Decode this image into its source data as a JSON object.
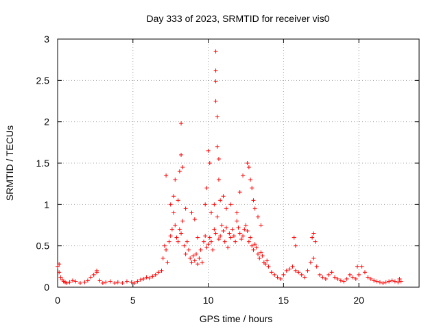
{
  "chart_data": {
    "type": "scatter",
    "title": "Day 333 of 2023, SRMTID for receiver vis0",
    "xlabel": "GPS time / hours",
    "ylabel": "SRMTID / TECUs",
    "xlim": [
      0,
      24
    ],
    "ylim": [
      0,
      3
    ],
    "x_ticks": [
      0,
      5,
      10,
      15,
      20
    ],
    "x_tick_labels": [
      "0",
      "5",
      "10",
      "15",
      "20"
    ],
    "y_ticks": [
      0,
      0.5,
      1,
      1.5,
      2,
      2.5,
      3
    ],
    "y_tick_labels": [
      "0",
      "0.5",
      "1",
      "1.5",
      "2",
      "2.5",
      "3"
    ],
    "grid": true,
    "marker": "+",
    "marker_color": "#ff0000",
    "series": [
      {
        "name": "vis0",
        "x": [
          0.0,
          0.1,
          0.2,
          0.3,
          0.4,
          0.5,
          0.6,
          0.8,
          1.0,
          1.2,
          1.5,
          1.8,
          2.0,
          2.2,
          2.4,
          2.6,
          2.8,
          3.0,
          3.2,
          3.5,
          3.8,
          4.0,
          4.3,
          4.6,
          4.9,
          5.1,
          5.3,
          5.5,
          5.7,
          5.9,
          6.1,
          6.3,
          6.5,
          6.7,
          6.9,
          7.0,
          7.1,
          7.2,
          7.3,
          7.4,
          7.5,
          7.6,
          7.7,
          7.8,
          7.9,
          8.0,
          8.1,
          8.2,
          8.3,
          8.4,
          8.5,
          8.6,
          8.7,
          8.8,
          8.9,
          9.0,
          9.1,
          9.2,
          9.3,
          9.4,
          9.5,
          9.6,
          9.7,
          9.8,
          9.9,
          10.0,
          10.1,
          10.2,
          10.3,
          10.4,
          10.5,
          10.6,
          10.7,
          10.8,
          10.9,
          11.0,
          11.1,
          11.2,
          11.3,
          11.4,
          11.5,
          11.6,
          11.7,
          11.8,
          11.9,
          12.0,
          12.1,
          12.2,
          12.3,
          12.4,
          12.5,
          12.6,
          12.7,
          12.8,
          12.9,
          13.0,
          13.1,
          13.2,
          13.3,
          13.4,
          13.5,
          13.6,
          13.7,
          13.8,
          13.9,
          14.0,
          14.2,
          14.4,
          14.6,
          14.8,
          15.0,
          15.2,
          15.4,
          15.6,
          15.8,
          16.0,
          16.2,
          16.4,
          16.6,
          16.8,
          17.0,
          17.2,
          17.4,
          17.6,
          17.8,
          18.0,
          18.2,
          18.4,
          18.6,
          18.8,
          19.0,
          19.2,
          19.4,
          19.6,
          19.8,
          20.0,
          20.2,
          20.4,
          20.6,
          20.8,
          21.0,
          21.2,
          21.4,
          21.6,
          21.8,
          22.0,
          22.2,
          22.4,
          22.6,
          22.8,
          7.2,
          7.5,
          7.7,
          7.8,
          8.0,
          8.1,
          8.2,
          8.2,
          8.3,
          8.5,
          8.9,
          9.1,
          9.3,
          9.8,
          9.9,
          10.0,
          10.1,
          10.2,
          10.4,
          10.5,
          10.5,
          10.5,
          10.5,
          10.6,
          10.6,
          10.7,
          10.7,
          10.8,
          11.0,
          11.2,
          11.5,
          11.9,
          12.1,
          12.3,
          12.6,
          12.7,
          12.8,
          12.9,
          13.0,
          13.1,
          13.3,
          13.5,
          15.7,
          15.8,
          16.9,
          17.0,
          17.1,
          0.1,
          2.6,
          19.9,
          22.7
        ],
        "y": [
          0.25,
          0.18,
          0.12,
          0.09,
          0.07,
          0.06,
          0.05,
          0.06,
          0.08,
          0.07,
          0.05,
          0.06,
          0.08,
          0.12,
          0.15,
          0.18,
          0.08,
          0.05,
          0.06,
          0.07,
          0.05,
          0.06,
          0.05,
          0.07,
          0.06,
          0.05,
          0.07,
          0.09,
          0.1,
          0.12,
          0.11,
          0.13,
          0.15,
          0.18,
          0.2,
          0.35,
          0.5,
          0.45,
          0.3,
          0.55,
          0.62,
          0.7,
          0.9,
          0.75,
          0.6,
          0.55,
          0.7,
          0.65,
          0.8,
          0.5,
          0.4,
          0.55,
          0.45,
          0.35,
          0.3,
          0.38,
          0.32,
          0.4,
          0.28,
          0.35,
          0.45,
          0.3,
          0.55,
          0.62,
          0.48,
          0.52,
          0.6,
          0.55,
          0.45,
          0.7,
          0.65,
          0.85,
          0.58,
          0.62,
          0.75,
          0.68,
          0.55,
          0.72,
          0.48,
          0.65,
          0.6,
          0.7,
          0.62,
          0.55,
          0.8,
          0.72,
          0.65,
          0.58,
          0.62,
          0.7,
          0.75,
          0.68,
          0.55,
          0.6,
          0.5,
          0.45,
          0.52,
          0.48,
          0.4,
          0.35,
          0.42,
          0.38,
          0.3,
          0.28,
          0.32,
          0.25,
          0.18,
          0.15,
          0.12,
          0.1,
          0.15,
          0.2,
          0.22,
          0.25,
          0.2,
          0.18,
          0.15,
          0.12,
          0.2,
          0.3,
          0.35,
          0.25,
          0.15,
          0.12,
          0.1,
          0.15,
          0.18,
          0.12,
          0.1,
          0.08,
          0.07,
          0.1,
          0.15,
          0.12,
          0.1,
          0.15,
          0.25,
          0.18,
          0.12,
          0.1,
          0.08,
          0.07,
          0.06,
          0.05,
          0.06,
          0.07,
          0.08,
          0.07,
          0.06,
          0.07,
          1.35,
          1.0,
          1.1,
          1.3,
          1.05,
          1.4,
          1.6,
          1.98,
          1.45,
          0.95,
          0.9,
          0.82,
          0.6,
          1.0,
          1.2,
          1.65,
          1.5,
          0.9,
          1.0,
          2.85,
          2.62,
          2.49,
          2.25,
          2.06,
          1.7,
          1.55,
          1.3,
          1.05,
          1.1,
          0.95,
          1.0,
          0.9,
          1.15,
          1.35,
          1.5,
          1.45,
          1.3,
          1.2,
          1.05,
          0.95,
          0.85,
          0.75,
          0.6,
          0.5,
          0.6,
          0.65,
          0.55,
          0.28,
          0.2,
          0.25,
          0.1
        ]
      }
    ]
  }
}
